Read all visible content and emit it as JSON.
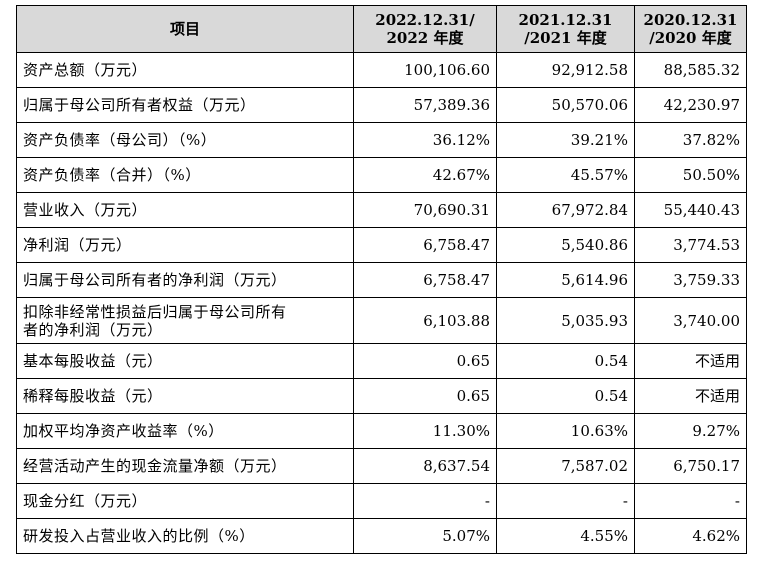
{
  "header": {
    "item": "项目",
    "col1_line1": "2022.12.31/",
    "col1_line2": "2022 年度",
    "col2_line1": "2021.12.31",
    "col2_line2": "/2021 年度",
    "col3_line1": "2020.12.31",
    "col3_line2": "/2020 年度"
  },
  "rows": [
    {
      "label": "资产总额（万元）",
      "v2022": "100,106.60",
      "v2021": "92,912.58",
      "v2020": "88,585.32"
    },
    {
      "label": "归属于母公司所有者权益（万元）",
      "v2022": "57,389.36",
      "v2021": "50,570.06",
      "v2020": "42,230.97"
    },
    {
      "label": "资产负债率（母公司）（%）",
      "v2022": "36.12%",
      "v2021": "39.21%",
      "v2020": "37.82%"
    },
    {
      "label": "资产负债率（合并）（%）",
      "v2022": "42.67%",
      "v2021": "45.57%",
      "v2020": "50.50%"
    },
    {
      "label": "营业收入（万元）",
      "v2022": "70,690.31",
      "v2021": "67,972.84",
      "v2020": "55,440.43"
    },
    {
      "label": "净利润（万元）",
      "v2022": "6,758.47",
      "v2021": "5,540.86",
      "v2020": "3,774.53"
    },
    {
      "label": "归属于母公司所有者的净利润（万元）",
      "v2022": "6,758.47",
      "v2021": "5,614.96",
      "v2020": "3,759.33"
    },
    {
      "label_line1": "扣除非经常性损益后归属于母公司所有",
      "label_line2": "者的净利润（万元）",
      "v2022": "6,103.88",
      "v2021": "5,035.93",
      "v2020": "3,740.00"
    },
    {
      "label": "基本每股收益（元）",
      "v2022": "0.65",
      "v2021": "0.54",
      "v2020": "不适用"
    },
    {
      "label": "稀释每股收益（元）",
      "v2022": "0.65",
      "v2021": "0.54",
      "v2020": "不适用"
    },
    {
      "label": "加权平均净资产收益率（%）",
      "v2022": "11.30%",
      "v2021": "10.63%",
      "v2020": "9.27%"
    },
    {
      "label": "经营活动产生的现金流量净额（万元）",
      "v2022": "8,637.54",
      "v2021": "7,587.02",
      "v2020": "6,750.17"
    },
    {
      "label": "现金分红（万元）",
      "v2022": "-",
      "v2021": "-",
      "v2020": "-"
    },
    {
      "label": "研发投入占营业收入的比例（%）",
      "v2022": "5.07%",
      "v2021": "4.55%",
      "v2020": "4.62%"
    }
  ]
}
